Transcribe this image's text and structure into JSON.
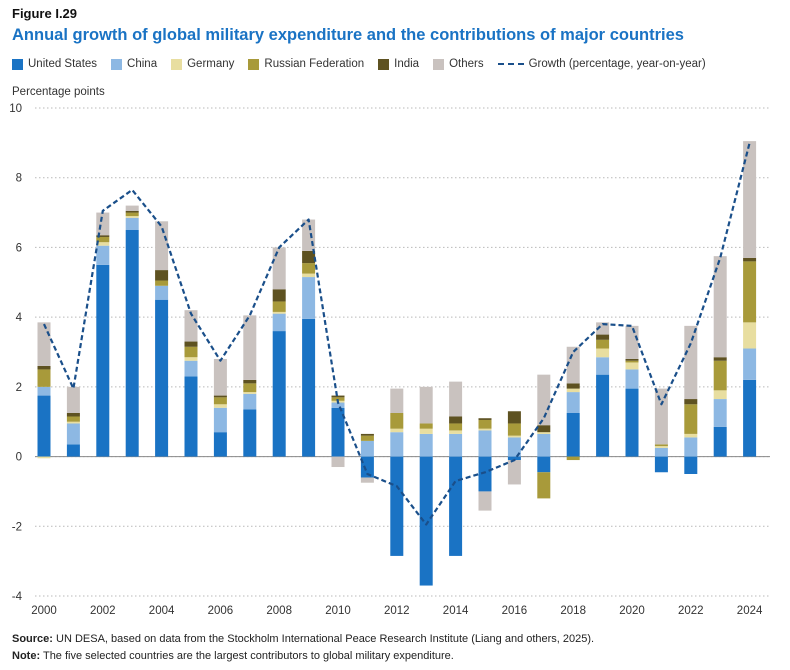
{
  "figure_label": "Figure I.29",
  "title": "Annual growth of global military expenditure and the contributions of major countries",
  "footer": {
    "source_label": "Source:",
    "source_text": "UN DESA, based on data from the Stockholm International Peace Research Institute (Liang and others, 2025).",
    "note_label": "Note:",
    "note_text": "The five selected countries are the largest contributors to global military expenditure."
  },
  "colors": {
    "United States": "#1a73c4",
    "China": "#8db8e3",
    "Germany": "#e8dea0",
    "Russian Federation": "#a89a3a",
    "India": "#5e5221",
    "Others": "#c9c2bf",
    "Growth": "#1a4f8a"
  },
  "chart_data": {
    "type": "bar",
    "stacked": true,
    "title": "Annual growth of global military expenditure and the contributions of major countries",
    "ylabel": "Percentage points",
    "xlabel": "",
    "ylim": [
      -4,
      10
    ],
    "yticks": [
      -4,
      -2,
      0,
      2,
      4,
      6,
      8,
      10
    ],
    "categories": [
      "2000",
      "2001",
      "2002",
      "2003",
      "2004",
      "2005",
      "2006",
      "2007",
      "2008",
      "2009",
      "2010",
      "2011",
      "2012",
      "2013",
      "2014",
      "2015",
      "2016",
      "2017",
      "2018",
      "2019",
      "2020",
      "2021",
      "2022",
      "2023",
      "2024"
    ],
    "xtick_labels": [
      "2000",
      "2002",
      "2004",
      "2006",
      "2008",
      "2010",
      "2012",
      "2014",
      "2016",
      "2018",
      "2020",
      "2022",
      "2024"
    ],
    "series": [
      {
        "name": "United States",
        "values": [
          1.75,
          0.35,
          5.5,
          6.5,
          4.5,
          2.3,
          0.7,
          1.35,
          3.6,
          3.95,
          1.4,
          -0.6,
          -2.85,
          -3.7,
          -2.85,
          -1.0,
          -0.1,
          -0.45,
          1.25,
          2.35,
          1.95,
          -0.45,
          -0.5,
          0.85,
          2.2
        ]
      },
      {
        "name": "China",
        "values": [
          0.25,
          0.6,
          0.55,
          0.35,
          0.4,
          0.45,
          0.7,
          0.45,
          0.5,
          1.2,
          0.15,
          0.45,
          0.7,
          0.65,
          0.65,
          0.75,
          0.55,
          0.65,
          0.6,
          0.5,
          0.55,
          0.25,
          0.55,
          0.8,
          0.9
        ]
      },
      {
        "name": "Germany",
        "values": [
          -0.05,
          0.05,
          0.1,
          0.05,
          0.0,
          0.1,
          0.1,
          0.05,
          0.05,
          0.1,
          0.05,
          0.0,
          0.1,
          0.15,
          0.1,
          0.05,
          0.05,
          0.05,
          0.1,
          0.25,
          0.2,
          0.05,
          0.1,
          0.25,
          0.75
        ]
      },
      {
        "name": "Russian Federation",
        "values": [
          0.5,
          0.15,
          0.15,
          0.1,
          0.15,
          0.3,
          0.2,
          0.25,
          0.3,
          0.3,
          0.1,
          0.15,
          0.45,
          0.15,
          0.2,
          0.25,
          0.35,
          -0.75,
          -0.1,
          0.25,
          0.05,
          0.05,
          0.85,
          0.85,
          1.75
        ]
      },
      {
        "name": "India",
        "values": [
          0.1,
          0.1,
          0.05,
          0.05,
          0.3,
          0.15,
          0.05,
          0.1,
          0.35,
          0.35,
          0.05,
          0.05,
          0.0,
          0.0,
          0.2,
          0.05,
          0.35,
          0.2,
          0.15,
          0.15,
          0.05,
          0.0,
          0.15,
          0.1,
          0.1
        ]
      },
      {
        "name": "Others",
        "values": [
          1.25,
          0.75,
          0.65,
          0.15,
          1.4,
          0.9,
          1.05,
          1.85,
          1.2,
          0.9,
          -0.3,
          -0.15,
          0.7,
          1.05,
          1.0,
          -0.55,
          -0.7,
          1.45,
          1.05,
          0.35,
          0.95,
          1.6,
          2.1,
          2.9,
          3.35
        ]
      }
    ],
    "growth": {
      "name": "Growth (percentage, year-on-year)",
      "values": [
        3.8,
        1.95,
        7.05,
        7.65,
        6.6,
        4.1,
        2.75,
        4.05,
        6.0,
        6.8,
        1.55,
        -0.5,
        -0.85,
        -1.95,
        -0.7,
        -0.45,
        -0.1,
        1.1,
        3.0,
        3.8,
        3.75,
        1.5,
        3.25,
        5.7,
        9.0
      ]
    },
    "legend": [
      "United States",
      "China",
      "Germany",
      "Russian Federation",
      "India",
      "Others",
      "Growth (percentage, year-on-year)"
    ],
    "grid": true,
    "legend_position": "top-left"
  }
}
